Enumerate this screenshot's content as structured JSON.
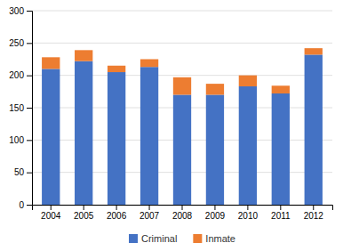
{
  "chart_data": {
    "type": "bar",
    "stacked": true,
    "categories": [
      "2004",
      "2005",
      "2006",
      "2007",
      "2008",
      "2009",
      "2010",
      "2011",
      "2012"
    ],
    "series": [
      {
        "name": "Criminal",
        "color": "#4472C4",
        "values": [
          210,
          222,
          205,
          213,
          170,
          170,
          183,
          172,
          232
        ]
      },
      {
        "name": "Inmate",
        "color": "#ED7D31",
        "values": [
          18,
          17,
          10,
          12,
          27,
          17,
          17,
          12,
          10
        ]
      }
    ],
    "ylim": [
      0,
      300
    ],
    "yticks": [
      0,
      50,
      100,
      150,
      200,
      250,
      300
    ],
    "grid": true,
    "legend": "bottom"
  }
}
